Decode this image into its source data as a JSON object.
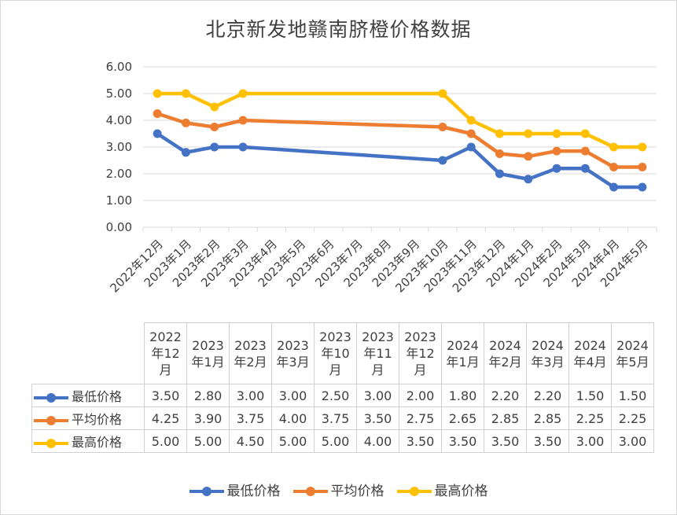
{
  "chart_data": {
    "type": "line",
    "title": "北京新发地赣南脐橙价格数据",
    "categories": [
      "2022年12月",
      "2023年1月",
      "2023年2月",
      "2023年3月",
      "2023年4月",
      "2023年5月",
      "2023年6月",
      "2023年7月",
      "2023年8月",
      "2023年9月",
      "2023年10月",
      "2023年11月",
      "2023年12月",
      "2024年1月",
      "2024年2月",
      "2024年3月",
      "2024年4月",
      "2024年5月"
    ],
    "y_ticks": [
      "0.00",
      "1.00",
      "2.00",
      "3.00",
      "4.00",
      "5.00",
      "6.00"
    ],
    "ylim": [
      0,
      6
    ],
    "grid": true,
    "legend_position": "bottom",
    "series": [
      {
        "name": "最低价格",
        "color": "#4472c4",
        "values": [
          3.5,
          2.8,
          3.0,
          3.0,
          null,
          null,
          null,
          null,
          null,
          null,
          2.5,
          3.0,
          2.0,
          1.8,
          2.2,
          2.2,
          1.5,
          1.5
        ]
      },
      {
        "name": "平均价格",
        "color": "#ed7d31",
        "values": [
          4.25,
          3.9,
          3.75,
          4.0,
          null,
          null,
          null,
          null,
          null,
          null,
          3.75,
          3.5,
          2.75,
          2.65,
          2.85,
          2.85,
          2.25,
          2.25
        ]
      },
      {
        "name": "最高价格",
        "color": "#ffc000",
        "values": [
          5.0,
          5.0,
          4.5,
          5.0,
          null,
          null,
          null,
          null,
          null,
          null,
          5.0,
          4.0,
          3.5,
          3.5,
          3.5,
          3.5,
          3.0,
          3.0
        ]
      }
    ],
    "table": {
      "headers": [
        [
          "2022",
          "年12",
          "月"
        ],
        [
          "2023",
          "年1月"
        ],
        [
          "2023",
          "年2月"
        ],
        [
          "2023",
          "年3月"
        ],
        [
          "2023",
          "年10",
          "月"
        ],
        [
          "2023",
          "年11",
          "月"
        ],
        [
          "2023",
          "年12",
          "月"
        ],
        [
          "2024",
          "年1月"
        ],
        [
          "2024",
          "年2月"
        ],
        [
          "2024",
          "年3月"
        ],
        [
          "2024",
          "年4月"
        ],
        [
          "2024",
          "年5月"
        ]
      ],
      "rows": [
        {
          "name": "最低价格",
          "color": "#4472c4",
          "cells": [
            "3.50",
            "2.80",
            "3.00",
            "3.00",
            "2.50",
            "3.00",
            "2.00",
            "1.80",
            "2.20",
            "2.20",
            "1.50",
            "1.50"
          ]
        },
        {
          "name": "平均价格",
          "color": "#ed7d31",
          "cells": [
            "4.25",
            "3.90",
            "3.75",
            "4.00",
            "3.75",
            "3.50",
            "2.75",
            "2.65",
            "2.85",
            "2.85",
            "2.25",
            "2.25"
          ]
        },
        {
          "name": "最高价格",
          "color": "#ffc000",
          "cells": [
            "5.00",
            "5.00",
            "4.50",
            "5.00",
            "5.00",
            "4.00",
            "3.50",
            "3.50",
            "3.50",
            "3.50",
            "3.00",
            "3.00"
          ]
        }
      ]
    }
  }
}
